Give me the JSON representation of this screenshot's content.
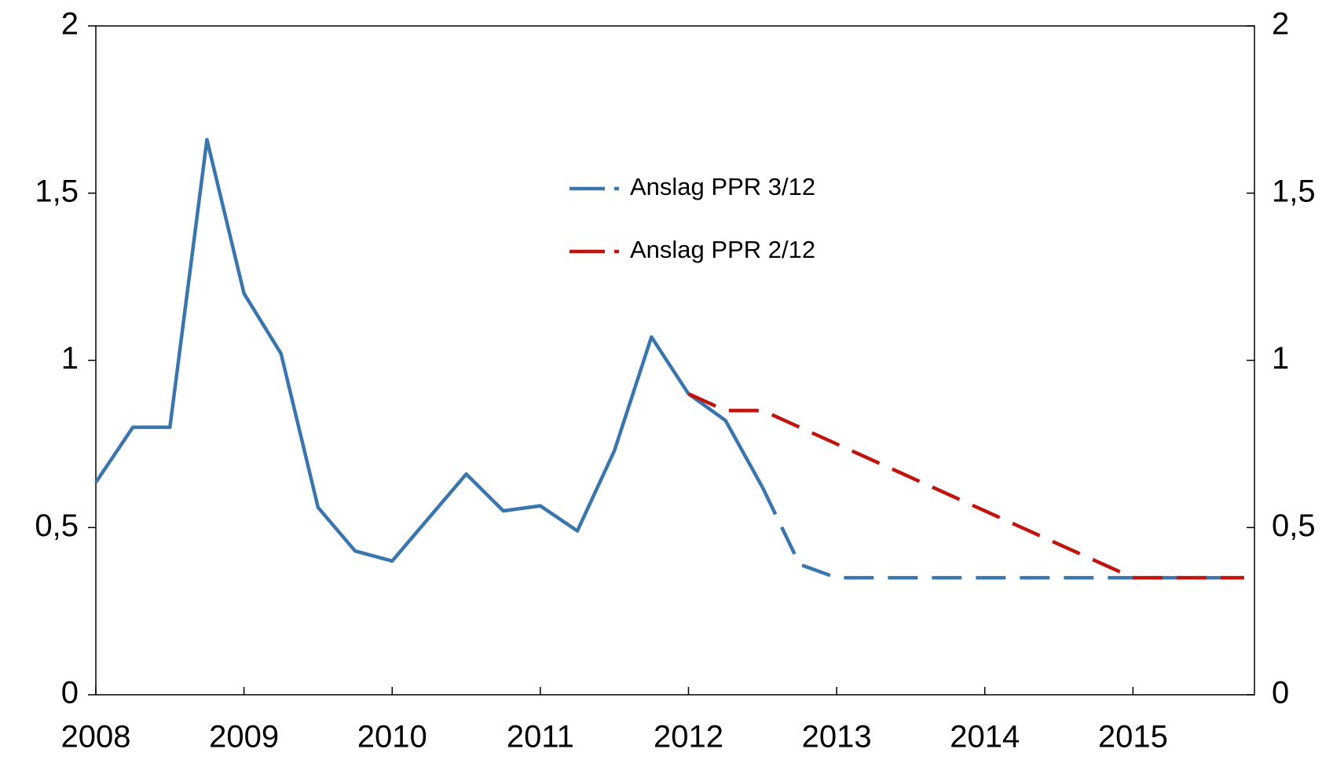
{
  "chart_data": {
    "type": "line",
    "x": [
      2008,
      2008.25,
      2008.5,
      2008.75,
      2009,
      2009.25,
      2009.5,
      2009.75,
      2010,
      2010.25,
      2010.5,
      2010.75,
      2011,
      2011.25,
      2011.5,
      2011.75,
      2012,
      2012.25,
      2012.5,
      2012.75,
      2013,
      2013.25,
      2013.5,
      2013.75,
      2014,
      2014.25,
      2014.5,
      2014.75,
      2015,
      2015.25,
      2015.5,
      2015.75
    ],
    "series": [
      {
        "color": "#3a76ad",
        "dash": false,
        "values": [
          0.635,
          0.8,
          0.8,
          1.66,
          1.2,
          1.02,
          0.56,
          0.43,
          0.4,
          0.53,
          0.66,
          0.55,
          0.565,
          0.49,
          0.73,
          1.07,
          0.9,
          0.82,
          0.62,
          null,
          null,
          null,
          null,
          null,
          null,
          null,
          null,
          null,
          null,
          null,
          null,
          null
        ]
      },
      {
        "name": "Anslag PPR 3/12",
        "color": "#3a76ad",
        "dash": true,
        "values": [
          null,
          null,
          null,
          null,
          null,
          null,
          null,
          null,
          null,
          null,
          null,
          null,
          null,
          null,
          null,
          null,
          null,
          null,
          0.62,
          0.39,
          0.35,
          0.35,
          0.35,
          0.35,
          0.35,
          0.35,
          0.35,
          0.35,
          0.35,
          0.35,
          0.35,
          0.35
        ]
      },
      {
        "name": "Anslag PPR 2/12",
        "color": "#c0150f",
        "dash": true,
        "values": [
          null,
          null,
          null,
          null,
          null,
          null,
          null,
          null,
          null,
          null,
          null,
          null,
          null,
          null,
          null,
          null,
          0.9,
          0.85,
          0.85,
          0.8,
          0.75,
          0.7,
          0.65,
          0.6,
          0.55,
          0.5,
          0.45,
          0.4,
          0.35,
          0.35,
          0.35,
          0.35
        ]
      }
    ],
    "xlim": [
      2008,
      2015.82
    ],
    "xticks": [
      2008,
      2009,
      2010,
      2011,
      2012,
      2013,
      2014,
      2015
    ],
    "ylim": [
      0,
      2
    ],
    "yticks": [
      0,
      {
        "value": 0.5,
        "label": "0,5"
      },
      1,
      {
        "value": 1.5,
        "label": "1,5"
      },
      2
    ],
    "y2lim": [
      0,
      2
    ],
    "y2ticks": [
      0,
      {
        "value": 0.5,
        "label": "0,5"
      },
      1,
      {
        "value": 1.5,
        "label": "1,5"
      },
      2
    ]
  }
}
